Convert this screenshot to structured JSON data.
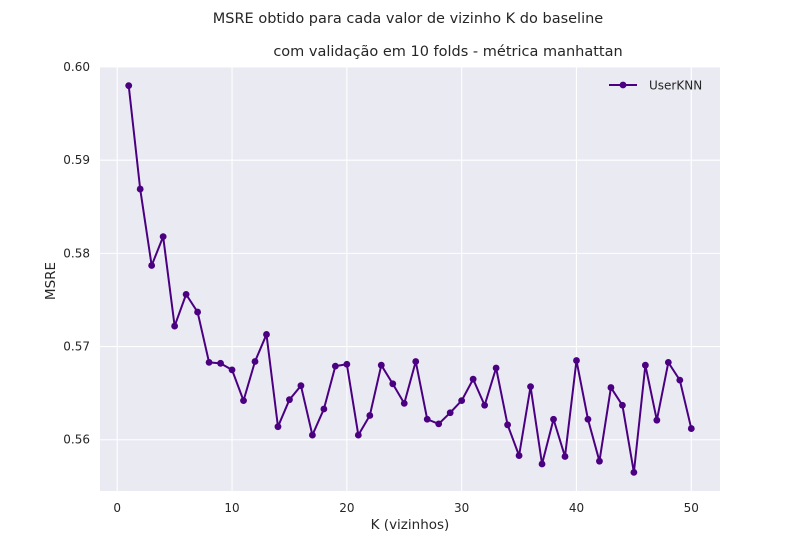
{
  "chart_data": {
    "type": "line",
    "title": "MSRE obtido para cada valor de vizinho K  do baseline",
    "subtitle": "com validação em 10 folds - métrica manhattan",
    "xlabel": "K (vizinhos)",
    "ylabel": "MSRE",
    "xlim": [
      -1.5,
      52.5
    ],
    "ylim": [
      0.5545,
      0.6
    ],
    "xticks": [
      0,
      10,
      20,
      30,
      40,
      50
    ],
    "xtick_labels": [
      "0",
      "10",
      "20",
      "30",
      "40",
      "50"
    ],
    "yticks": [
      0.56,
      0.57,
      0.58,
      0.59,
      0.6
    ],
    "ytick_labels": [
      "0.56",
      "0.57",
      "0.58",
      "0.59",
      "0.60"
    ],
    "grid": true,
    "legend_position": "top-right",
    "series": [
      {
        "name": "UserKNN",
        "color": "#4b0082",
        "x": [
          1,
          2,
          3,
          4,
          5,
          6,
          7,
          8,
          9,
          10,
          11,
          12,
          13,
          14,
          15,
          16,
          17,
          18,
          19,
          20,
          21,
          22,
          23,
          24,
          25,
          26,
          27,
          28,
          29,
          30,
          31,
          32,
          33,
          34,
          35,
          36,
          37,
          38,
          39,
          40,
          41,
          42,
          43,
          44,
          45,
          46,
          47,
          48,
          49,
          50
        ],
        "y": [
          0.598,
          0.5869,
          0.5787,
          0.5818,
          0.5722,
          0.5756,
          0.5737,
          0.5683,
          0.5682,
          0.5675,
          0.5642,
          0.5684,
          0.5713,
          0.5614,
          0.5643,
          0.5658,
          0.5605,
          0.5633,
          0.5679,
          0.5681,
          0.5605,
          0.5626,
          0.568,
          0.566,
          0.5639,
          0.5684,
          0.5622,
          0.5617,
          0.5629,
          0.5642,
          0.5665,
          0.5637,
          0.5677,
          0.5616,
          0.5583,
          0.5657,
          0.5574,
          0.5622,
          0.5582,
          0.5685,
          0.5622,
          0.5577,
          0.5656,
          0.5637,
          0.5565,
          0.568,
          0.5621,
          0.5683,
          0.5664,
          0.5612
        ]
      }
    ]
  }
}
